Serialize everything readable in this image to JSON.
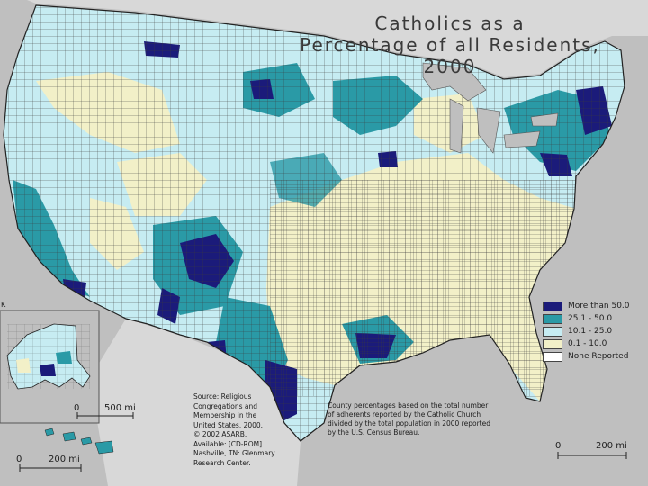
{
  "title": {
    "line1": "Catholics as a",
    "line2": "Percentage of all Residents, 2000"
  },
  "legend": [
    {
      "label": "More than 50.0",
      "color": "#1b1b7a"
    },
    {
      "label": "25.1 - 50.0",
      "color": "#2a9aa6"
    },
    {
      "label": "10.1 - 25.0",
      "color": "#c6ecf2"
    },
    {
      "label": "0.1 - 10.0",
      "color": "#f2f0c8"
    },
    {
      "label": "None Reported",
      "color": "#ffffff"
    }
  ],
  "source": {
    "lines": [
      "Source: Religious",
      "Congregations and",
      "Membership in the",
      "United States, 2000.",
      "© 2002 ASARB.",
      "Available: [CD-ROM].",
      "Nashville, TN: Glenmary",
      "Research Center."
    ]
  },
  "note": {
    "lines": [
      "County percentages based on the total number",
      "of adherents reported by the Catholic Church",
      "divided by the total population in 2000 reported",
      "by the U.S. Census Bureau."
    ]
  },
  "scales": {
    "alaska": {
      "zero": "0",
      "distance": "500 mi"
    },
    "hawaii": {
      "zero": "0",
      "distance": "200 mi"
    },
    "main": {
      "zero": "0",
      "distance": "200 mi"
    }
  },
  "edge_mark": "K"
}
